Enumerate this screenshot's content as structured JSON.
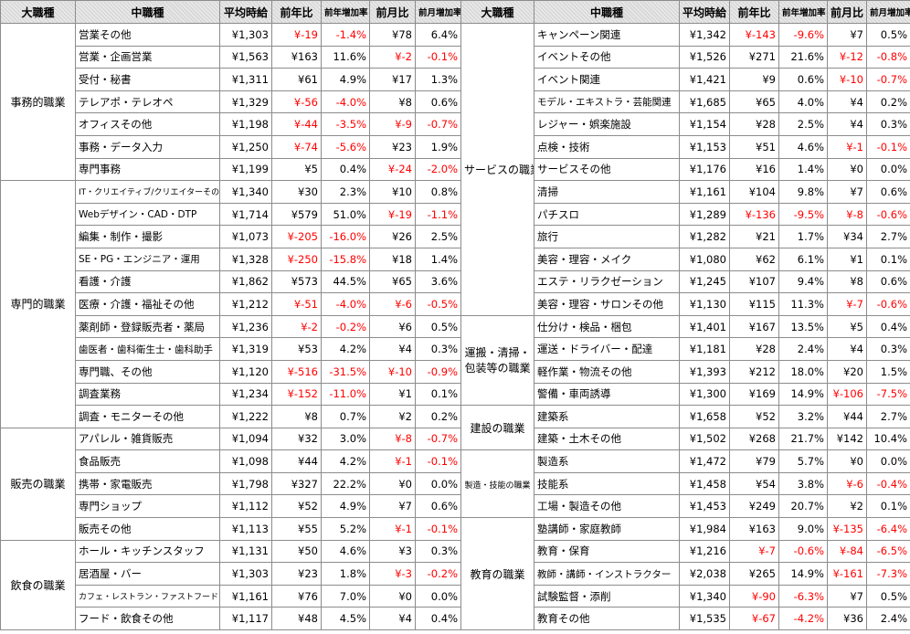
{
  "headers": [
    "大職種",
    "中職種",
    "平均時給",
    "前年比",
    "前年増加率",
    "前月比",
    "前月増加率"
  ],
  "left": [
    {
      "cat": "事務的職業",
      "rows": [
        [
          "営業その他",
          "¥1,303",
          "¥-19",
          "-1.4%",
          "¥78",
          "6.4%"
        ],
        [
          "営業・企画営業",
          "¥1,563",
          "¥163",
          "11.6%",
          "¥-2",
          "-0.1%"
        ],
        [
          "受付・秘書",
          "¥1,311",
          "¥61",
          "4.9%",
          "¥17",
          "1.3%"
        ],
        [
          "テレアポ・テレオペ",
          "¥1,329",
          "¥-56",
          "-4.0%",
          "¥8",
          "0.6%"
        ],
        [
          "オフィスその他",
          "¥1,198",
          "¥-44",
          "-3.5%",
          "¥-9",
          "-0.7%"
        ],
        [
          "事務・データ入力",
          "¥1,250",
          "¥-74",
          "-5.6%",
          "¥23",
          "1.9%"
        ],
        [
          "専門事務",
          "¥1,199",
          "¥5",
          "0.4%",
          "¥-24",
          "-2.0%"
        ]
      ]
    },
    {
      "cat": "専門的職業",
      "rows": [
        [
          "IT・クリエイティブ/クリエイターその他",
          "¥1,340",
          "¥30",
          "2.3%",
          "¥10",
          "0.8%"
        ],
        [
          "Webデザイン・CAD・DTP",
          "¥1,714",
          "¥579",
          "51.0%",
          "¥-19",
          "-1.1%"
        ],
        [
          "編集・制作・撮影",
          "¥1,073",
          "¥-205",
          "-16.0%",
          "¥26",
          "2.5%"
        ],
        [
          "SE・PG・エンジニア・運用",
          "¥1,328",
          "¥-250",
          "-15.8%",
          "¥18",
          "1.4%"
        ],
        [
          "看護・介護",
          "¥1,862",
          "¥573",
          "44.5%",
          "¥65",
          "3.6%"
        ],
        [
          "医療・介護・福祉その他",
          "¥1,212",
          "¥-51",
          "-4.0%",
          "¥-6",
          "-0.5%"
        ],
        [
          "薬剤師・登録販売者・薬局",
          "¥1,236",
          "¥-2",
          "-0.2%",
          "¥6",
          "0.5%"
        ],
        [
          "歯医者・歯科衛生士・歯科助手",
          "¥1,319",
          "¥53",
          "4.2%",
          "¥4",
          "0.3%"
        ],
        [
          "専門職、その他",
          "¥1,120",
          "¥-516",
          "-31.5%",
          "¥-10",
          "-0.9%"
        ],
        [
          "調査業務",
          "¥1,234",
          "¥-152",
          "-11.0%",
          "¥1",
          "0.1%"
        ],
        [
          "調査・モニターその他",
          "¥1,222",
          "¥8",
          "0.7%",
          "¥2",
          "0.2%"
        ]
      ]
    },
    {
      "cat": "販売の職業",
      "rows": [
        [
          "アパレル・雑貨販売",
          "¥1,094",
          "¥32",
          "3.0%",
          "¥-8",
          "-0.7%"
        ],
        [
          "食品販売",
          "¥1,098",
          "¥44",
          "4.2%",
          "¥-1",
          "-0.1%"
        ],
        [
          "携帯・家電販売",
          "¥1,798",
          "¥327",
          "22.2%",
          "¥0",
          "0.0%"
        ],
        [
          "専門ショップ",
          "¥1,112",
          "¥52",
          "4.9%",
          "¥7",
          "0.6%"
        ],
        [
          "販売その他",
          "¥1,113",
          "¥55",
          "5.2%",
          "¥-1",
          "-0.1%"
        ]
      ]
    },
    {
      "cat": "飲食の職業",
      "rows": [
        [
          "ホール・キッチンスタッフ",
          "¥1,131",
          "¥50",
          "4.6%",
          "¥3",
          "0.3%"
        ],
        [
          "居酒屋・バー",
          "¥1,303",
          "¥23",
          "1.8%",
          "¥-3",
          "-0.2%"
        ],
        [
          "カフェ・レストラン・ファストフード",
          "¥1,161",
          "¥76",
          "7.0%",
          "¥0",
          "0.0%"
        ],
        [
          "フード・飲食その他",
          "¥1,117",
          "¥48",
          "4.5%",
          "¥4",
          "0.4%"
        ]
      ]
    }
  ],
  "right": [
    {
      "cat": "サービスの職業",
      "rows": [
        [
          "キャンペーン関連",
          "¥1,342",
          "¥-143",
          "-9.6%",
          "¥7",
          "0.5%"
        ],
        [
          "イベントその他",
          "¥1,526",
          "¥271",
          "21.6%",
          "¥-12",
          "-0.8%"
        ],
        [
          "イベント関連",
          "¥1,421",
          "¥9",
          "0.6%",
          "¥-10",
          "-0.7%"
        ],
        [
          "モデル・エキストラ・芸能関連",
          "¥1,685",
          "¥65",
          "4.0%",
          "¥4",
          "0.2%"
        ],
        [
          "レジャー・娯楽施設",
          "¥1,154",
          "¥28",
          "2.5%",
          "¥4",
          "0.3%"
        ],
        [
          "点検・技術",
          "¥1,153",
          "¥51",
          "4.6%",
          "¥-1",
          "-0.1%"
        ],
        [
          "サービスその他",
          "¥1,176",
          "¥16",
          "1.4%",
          "¥0",
          "0.0%"
        ],
        [
          "清掃",
          "¥1,161",
          "¥104",
          "9.8%",
          "¥7",
          "0.6%"
        ],
        [
          "パチスロ",
          "¥1,289",
          "¥-136",
          "-9.5%",
          "¥-8",
          "-0.6%"
        ],
        [
          "旅行",
          "¥1,282",
          "¥21",
          "1.7%",
          "¥34",
          "2.7%"
        ],
        [
          "美容・理容・メイク",
          "¥1,080",
          "¥62",
          "6.1%",
          "¥1",
          "0.1%"
        ],
        [
          "エステ・リラクゼーション",
          "¥1,245",
          "¥107",
          "9.4%",
          "¥8",
          "0.6%"
        ],
        [
          "美容・理容・サロンその他",
          "¥1,130",
          "¥115",
          "11.3%",
          "¥-7",
          "-0.6%"
        ]
      ]
    },
    {
      "cat": "運搬・清掃・包装等の職業",
      "cat_lines": [
        "運搬・清掃・",
        "包装等の職業"
      ],
      "rows": [
        [
          "仕分け・検品・梱包",
          "¥1,401",
          "¥167",
          "13.5%",
          "¥5",
          "0.4%"
        ],
        [
          "運送・ドライバー・配達",
          "¥1,181",
          "¥28",
          "2.4%",
          "¥4",
          "0.3%"
        ],
        [
          "軽作業・物流その他",
          "¥1,393",
          "¥212",
          "18.0%",
          "¥20",
          "1.5%"
        ],
        [
          "警備・車両誘導",
          "¥1,300",
          "¥169",
          "14.9%",
          "¥-106",
          "-7.5%"
        ]
      ]
    },
    {
      "cat": "建設の職業",
      "rows": [
        [
          "建築系",
          "¥1,658",
          "¥52",
          "3.2%",
          "¥44",
          "2.7%"
        ],
        [
          "建築・土木その他",
          "¥1,502",
          "¥268",
          "21.7%",
          "¥142",
          "10.4%"
        ]
      ]
    },
    {
      "cat": "製造・技能の職業",
      "rows": [
        [
          "製造系",
          "¥1,472",
          "¥79",
          "5.7%",
          "¥0",
          "0.0%"
        ],
        [
          "技能系",
          "¥1,458",
          "¥54",
          "3.8%",
          "¥-6",
          "-0.4%"
        ],
        [
          "工場・製造その他",
          "¥1,453",
          "¥249",
          "20.7%",
          "¥2",
          "0.1%"
        ]
      ]
    },
    {
      "cat": "教育の職業",
      "rows": [
        [
          "塾講師・家庭教師",
          "¥1,984",
          "¥163",
          "9.0%",
          "¥-135",
          "-6.4%"
        ],
        [
          "教育・保育",
          "¥1,216",
          "¥-7",
          "-0.6%",
          "¥-84",
          "-6.5%"
        ],
        [
          "教師・講師・インストラクター",
          "¥2,038",
          "¥265",
          "14.9%",
          "¥-161",
          "-7.3%"
        ],
        [
          "試験監督・添削",
          "¥1,340",
          "¥-90",
          "-6.3%",
          "¥7",
          "0.5%"
        ],
        [
          "教育その他",
          "¥1,535",
          "¥-67",
          "-4.2%",
          "¥36",
          "2.4%"
        ]
      ]
    }
  ],
  "style": {
    "negative_color": "#ff0000",
    "header_bg": "#d9d9d9",
    "border": "#8c8c8c"
  }
}
